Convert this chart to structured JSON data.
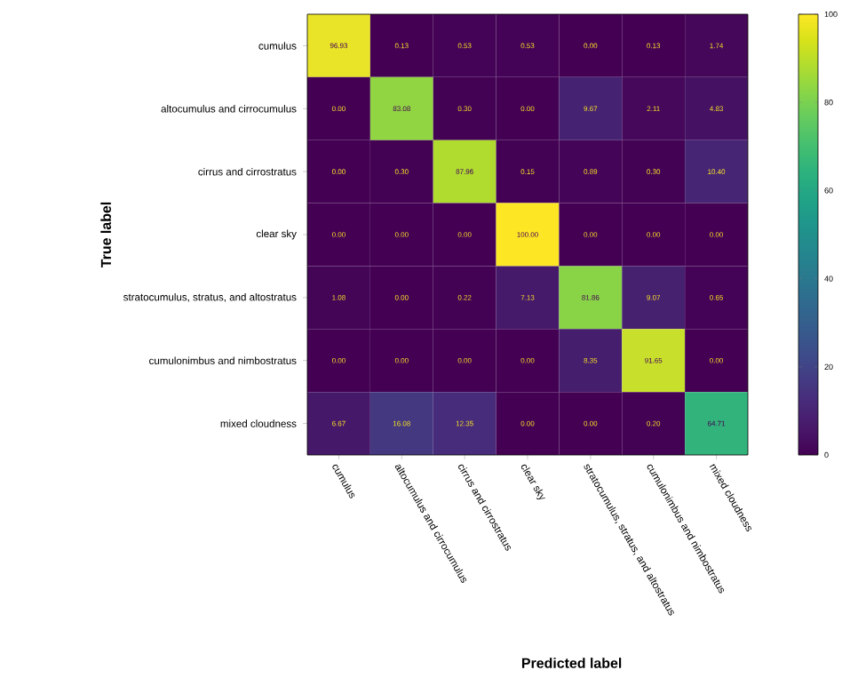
{
  "chart_data": {
    "type": "heatmap",
    "xlabel": "Predicted label",
    "ylabel": "True label",
    "categories": [
      "cumulus",
      "altocumulus and cirrocumulus",
      "cirrus and cirrostratus",
      "clear sky",
      "stratocumulus, stratus, and altostratus",
      "cumulonimbus and nimbostratus",
      "mixed cloudness"
    ],
    "y_categories": [
      "cumulus",
      "altocumulus and cirrocumulus",
      "cirrus and cirrostratus",
      "clear sky",
      "stratocumulus, stratus, and altostratus",
      "cumulonimbus and nimbostratus",
      "mixed cloudness"
    ],
    "cells": [
      [
        96.93,
        0.13,
        0.53,
        0.53,
        0.0,
        0.13,
        1.74
      ],
      [
        0.0,
        83.08,
        0.3,
        0.0,
        9.67,
        2.11,
        4.83
      ],
      [
        0.0,
        0.3,
        87.96,
        0.15,
        0.89,
        0.3,
        10.4
      ],
      [
        0.0,
        0.0,
        0.0,
        100.0,
        0.0,
        0.0,
        0.0
      ],
      [
        1.08,
        0.0,
        0.22,
        7.13,
        81.86,
        9.07,
        0.65
      ],
      [
        0.0,
        0.0,
        0.0,
        0.0,
        8.35,
        91.65,
        0.0
      ],
      [
        6.67,
        16.08,
        12.35,
        0.0,
        0.0,
        0.2,
        64.71
      ]
    ],
    "cell_labels": [
      [
        "96.93",
        "0.13",
        "0.53",
        "0.53",
        "0.00",
        "0.13",
        "1.74"
      ],
      [
        "0.00",
        "83.08",
        "0.30",
        "0.00",
        "9.67",
        "2.11",
        "4.83"
      ],
      [
        "0.00",
        "0.30",
        "87.96",
        "0.15",
        "0.89",
        "0.30",
        "10.40"
      ],
      [
        "0.00",
        "0.00",
        "0.00",
        "100.00",
        "0.00",
        "0.00",
        "0.00"
      ],
      [
        "1.08",
        "0.00",
        "0.22",
        "7.13",
        "81.86",
        "9.07",
        "0.65"
      ],
      [
        "0.00",
        "0.00",
        "0.00",
        "0.00",
        "8.35",
        "91.65",
        "0.00"
      ],
      [
        "6.67",
        "16.08",
        "12.35",
        "0.00",
        "0.00",
        "0.20",
        "64.71"
      ]
    ],
    "clim": [
      0,
      100
    ],
    "cticks": [
      0,
      20,
      40,
      60,
      80,
      100
    ]
  }
}
